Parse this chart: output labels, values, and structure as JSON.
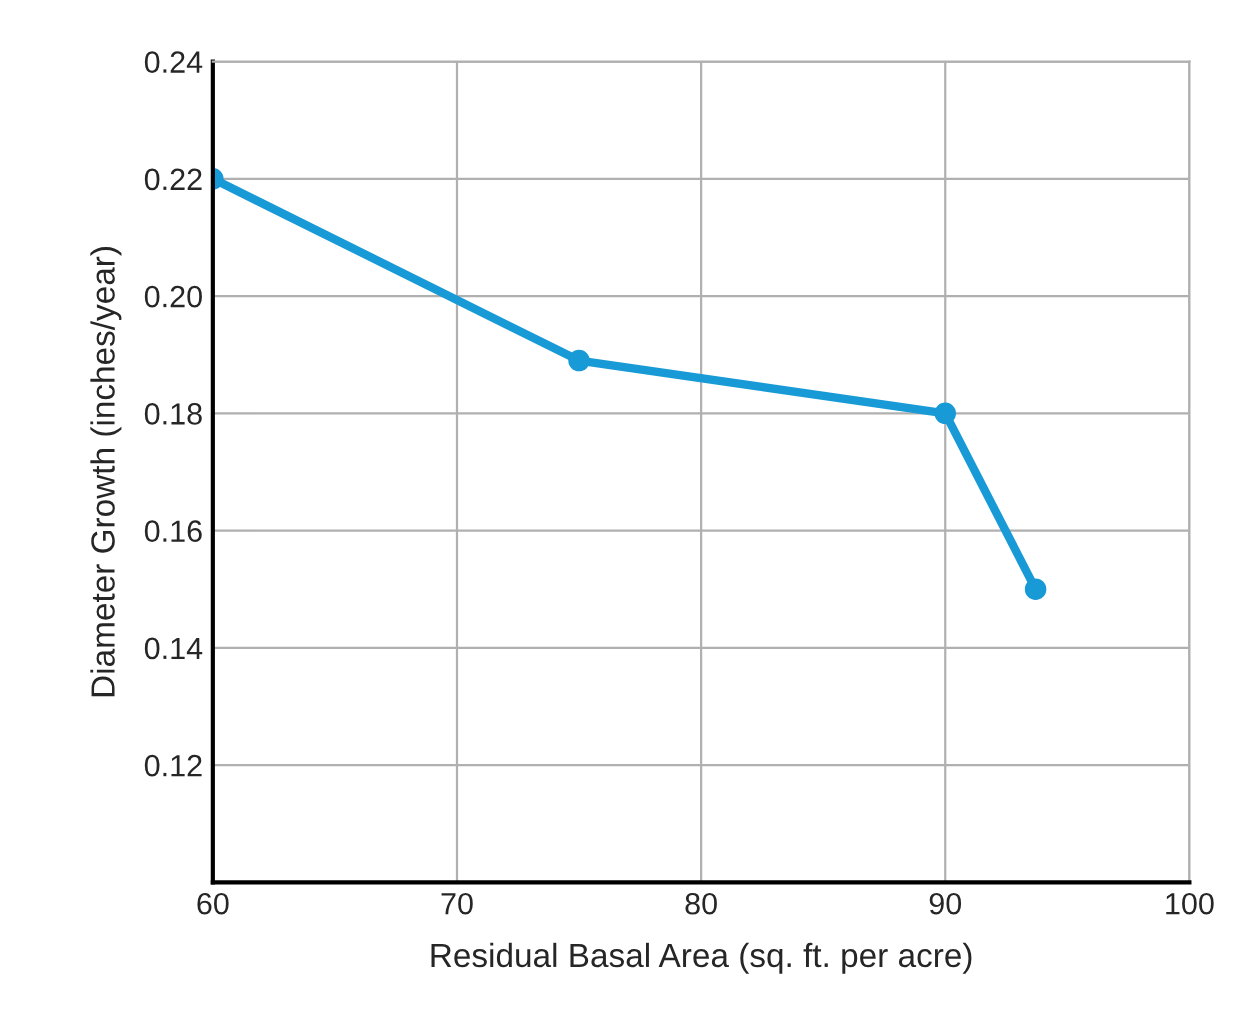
{
  "chart_data": {
    "type": "line",
    "xlabel": "Residual Basal Area (sq. ft. per acre)",
    "ylabel": "Diameter Growth (inches/year)",
    "x": [
      60,
      75,
      90,
      93.7
    ],
    "series": [
      {
        "color": "#189ad6",
        "values": [
          0.22,
          0.189,
          0.18,
          0.15
        ]
      }
    ],
    "xlim": [
      60,
      100
    ],
    "xticks": [
      60,
      70,
      80,
      90,
      100
    ],
    "ylim": [
      0.1,
      0.24
    ],
    "yticks": [
      {
        "value": 0.12,
        "label": "0.12"
      },
      {
        "value": 0.14,
        "label": "0.14"
      },
      {
        "value": 0.16,
        "label": "0.16"
      },
      {
        "value": 0.18,
        "label": "0.18"
      },
      {
        "value": 0.2,
        "label": "0.20"
      },
      {
        "value": 0.22,
        "label": "0.22"
      },
      {
        "value": 0.24,
        "label": "0.24"
      }
    ],
    "grid": true,
    "marker": "circle",
    "line_style": "solid"
  }
}
